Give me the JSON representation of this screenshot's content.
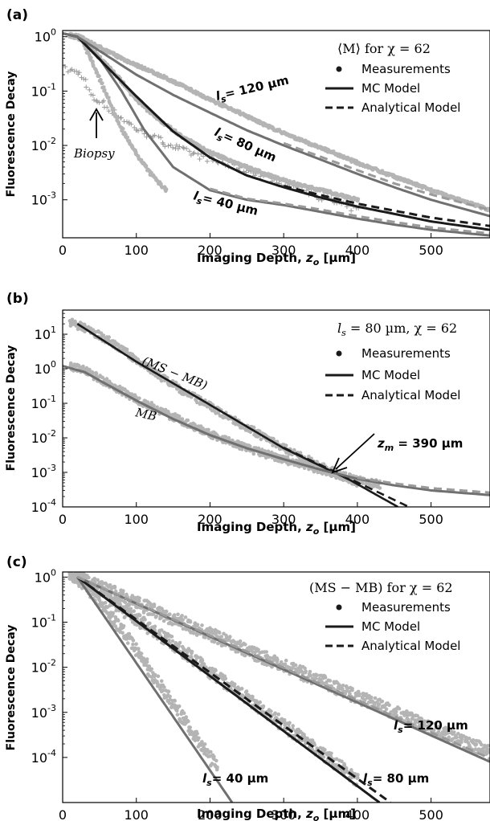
{
  "colors": {
    "meas": "#b4b4b4",
    "biopsy": "#9a9a9a",
    "mc_dark": "#1a1a1a",
    "gray_line": "#707070",
    "gray_dash": "#9a9a9a"
  },
  "chart_data": [
    {
      "panel": "(a)",
      "type": "line",
      "title": "",
      "xlabel": "Imaging Depth, z_o [µm]",
      "ylabel": "Fluorescence Decay",
      "xlim": [
        0,
        580
      ],
      "ylim": [
        0.0002,
        1.3
      ],
      "yscale": "log",
      "xticks": [
        0,
        100,
        200,
        300,
        400,
        500
      ],
      "yticks": [
        "10^0",
        "10^-1",
        "10^-2",
        "10^-3"
      ],
      "legend": {
        "title": "⟨M⟩ for χ = 62",
        "placement": "top-right",
        "entries": [
          "Measurements",
          "MC Model",
          "Analytical Model"
        ]
      },
      "annotations": [
        "l_s = 120 µm",
        "l_s = 80 µm",
        "l_s = 40 µm",
        "Biopsy"
      ],
      "series": [
        {
          "ls": 40,
          "model": "MC",
          "x": [
            0,
            20,
            50,
            80,
            110,
            150,
            200,
            250,
            300,
            350,
            400,
            450,
            500,
            580
          ],
          "y": [
            1.15,
            1.0,
            0.4,
            0.1,
            0.02,
            0.004,
            0.0015,
            0.001,
            0.0008,
            0.0006,
            0.00045,
            0.00035,
            0.00028,
            0.00022
          ]
        },
        {
          "ls": 40,
          "model": "Analytical",
          "x": [
            200,
            250,
            300,
            350,
            400,
            450,
            500,
            580
          ],
          "y": [
            0.0016,
            0.00105,
            0.00085,
            0.00066,
            0.0005,
            0.00039,
            0.00031,
            0.00024
          ]
        },
        {
          "ls": 80,
          "model": "MC",
          "x": [
            0,
            20,
            60,
            100,
            150,
            200,
            250,
            300,
            350,
            400,
            450,
            500,
            580
          ],
          "y": [
            1.15,
            1.0,
            0.28,
            0.08,
            0.018,
            0.006,
            0.0028,
            0.0017,
            0.0011,
            0.00075,
            0.00055,
            0.0004,
            0.00028
          ]
        },
        {
          "ls": 80,
          "model": "Analytical",
          "x": [
            300,
            350,
            400,
            450,
            500,
            580
          ],
          "y": [
            0.0018,
            0.00122,
            0.00085,
            0.00063,
            0.00047,
            0.00033
          ]
        },
        {
          "ls": 120,
          "model": "MC",
          "x": [
            0,
            20,
            60,
            100,
            150,
            200,
            250,
            300,
            350,
            400,
            450,
            500,
            580
          ],
          "y": [
            1.15,
            1.0,
            0.45,
            0.2,
            0.085,
            0.04,
            0.019,
            0.01,
            0.0055,
            0.003,
            0.0017,
            0.001,
            0.0005
          ]
        },
        {
          "ls": 120,
          "model": "Analytical",
          "x": [
            300,
            350,
            400,
            450,
            500,
            580
          ],
          "y": [
            0.011,
            0.0062,
            0.0035,
            0.002,
            0.00125,
            0.00065
          ]
        }
      ],
      "measurements": [
        {
          "ls": 120,
          "x": [
            10,
            25,
            40,
            60,
            80,
            100,
            130,
            160,
            200,
            240,
            280,
            320,
            360,
            400,
            440,
            480,
            520,
            560,
            580
          ],
          "y": [
            1.1,
            1.0,
            0.75,
            0.55,
            0.4,
            0.3,
            0.2,
            0.13,
            0.07,
            0.04,
            0.022,
            0.013,
            0.008,
            0.0048,
            0.003,
            0.0019,
            0.0012,
            0.0008,
            0.00065
          ]
        },
        {
          "ls": 80,
          "x": [
            10,
            25,
            40,
            60,
            80,
            100,
            130,
            160,
            200,
            240,
            280,
            320,
            360,
            400
          ],
          "y": [
            1.05,
            0.95,
            0.6,
            0.3,
            0.15,
            0.07,
            0.03,
            0.015,
            0.0075,
            0.0045,
            0.0028,
            0.0019,
            0.0014,
            0.001
          ]
        },
        {
          "ls": 40,
          "x": [
            10,
            25,
            40,
            55,
            70,
            85,
            100,
            120,
            140
          ],
          "y": [
            1.05,
            0.9,
            0.35,
            0.12,
            0.04,
            0.015,
            0.007,
            0.003,
            0.0015
          ]
        }
      ],
      "biopsy": {
        "x": [
          5,
          10,
          15,
          20,
          25,
          30,
          35,
          40,
          45,
          50,
          55,
          60,
          70,
          80,
          90,
          100,
          120,
          140,
          160,
          180,
          200,
          220,
          240,
          260,
          280,
          300,
          320,
          340,
          360,
          380,
          400
        ],
        "y": [
          0.25,
          0.24,
          0.23,
          0.22,
          0.2,
          0.15,
          0.1,
          0.075,
          0.07,
          0.065,
          0.06,
          0.05,
          0.04,
          0.032,
          0.025,
          0.02,
          0.015,
          0.011,
          0.0085,
          0.0068,
          0.0055,
          0.0045,
          0.0038,
          0.0032,
          0.0026,
          0.0021,
          0.0017,
          0.0013,
          0.001,
          0.0008,
          0.00065
        ]
      }
    },
    {
      "panel": "(b)",
      "type": "line",
      "title": "",
      "xlabel": "Imaging Depth, z_o [µm]",
      "ylabel": "Fluorescence Decay",
      "xlim": [
        0,
        580
      ],
      "ylim": [
        0.0001,
        50
      ],
      "yscale": "log",
      "xticks": [
        0,
        100,
        200,
        300,
        400,
        500
      ],
      "yticks": [
        "10^1",
        "10^0",
        "10^-1",
        "10^-2",
        "10^-3",
        "10^-4"
      ],
      "legend": {
        "title": "l_s = 80 µm, χ = 62",
        "placement": "top-right",
        "entries": [
          "Measurements",
          "MC Model",
          "Analytical Model"
        ]
      },
      "annotations": [
        "(MS − MB)",
        "MB",
        "z_m = 390 µm"
      ],
      "series": [
        {
          "name": "(MS − MB)",
          "model": "MC",
          "x": [
            20,
            100,
            200,
            300,
            390,
            455
          ],
          "y": [
            20,
            1.6,
            0.09,
            0.005,
            0.0006,
            0.0001
          ]
        },
        {
          "name": "(MS − MB)",
          "model": "Analytical",
          "x": [
            300,
            390,
            470
          ],
          "y": [
            0.0052,
            0.00065,
            0.0001
          ]
        },
        {
          "name": "MB",
          "model": "MC",
          "x": [
            0,
            30,
            60,
            100,
            150,
            200,
            250,
            300,
            350,
            400,
            450,
            500,
            580
          ],
          "y": [
            1.2,
            0.8,
            0.35,
            0.12,
            0.035,
            0.012,
            0.005,
            0.0024,
            0.0012,
            0.00065,
            0.00042,
            0.0003,
            0.00022
          ]
        },
        {
          "name": "MB",
          "model": "Analytical",
          "x": [
            400,
            450,
            500,
            580
          ],
          "y": [
            0.0007,
            0.00048,
            0.00035,
            0.00026
          ]
        }
      ],
      "measurements": [
        {
          "name": "(MS − MB)",
          "x": [
            10,
            30,
            60,
            100,
            150,
            200,
            250,
            300,
            350,
            400
          ],
          "y": [
            22,
            15,
            7,
            1.8,
            0.35,
            0.08,
            0.02,
            0.005,
            0.0015,
            0.0005
          ]
        },
        {
          "name": "MB",
          "x": [
            10,
            30,
            60,
            100,
            150,
            200,
            250,
            300,
            350,
            400,
            430
          ],
          "y": [
            1.2,
            0.9,
            0.4,
            0.13,
            0.04,
            0.013,
            0.005,
            0.0023,
            0.0012,
            0.0006,
            0.00045
          ]
        }
      ],
      "marker": {
        "label": "z_m = 390 µm",
        "x": 390,
        "y": 0.0006
      }
    },
    {
      "panel": "(c)",
      "type": "line",
      "title": "",
      "xlabel": "Imaging Depth, z_o [µm]",
      "ylabel": "Fluorescence Decay",
      "xlim": [
        0,
        580
      ],
      "ylim": [
        1e-05,
        1.3
      ],
      "yscale": "log",
      "xticks": [
        0,
        100,
        200,
        300,
        400,
        500
      ],
      "yticks": [
        "10^0",
        "10^-1",
        "10^-2",
        "10^-3",
        "10^-4"
      ],
      "legend": {
        "title": "(MS − MB) for χ = 62",
        "placement": "top-right",
        "entries": [
          "Measurements",
          "MC Model",
          "Analytical Model"
        ]
      },
      "annotations": [
        "l_s = 40 µm",
        "l_s = 80 µm",
        "l_s = 120 µm"
      ],
      "series": [
        {
          "ls": 40,
          "model": "MC",
          "x": [
            20,
            230
          ],
          "y": [
            1.0,
            1e-05
          ]
        },
        {
          "ls": 80,
          "model": "MC",
          "x": [
            20,
            430
          ],
          "y": [
            1.0,
            1e-05
          ]
        },
        {
          "ls": 80,
          "model": "Analytical",
          "x": [
            20,
            445
          ],
          "y": [
            1.0,
            1e-05
          ]
        },
        {
          "ls": 120,
          "model": "MC",
          "x": [
            20,
            580
          ],
          "y": [
            1.0,
            8e-05
          ]
        },
        {
          "ls": 120,
          "model": "Analytical",
          "x": [
            20,
            580
          ],
          "y": [
            1.0,
            9.5e-05
          ]
        }
      ],
      "measurements": [
        {
          "ls": 40,
          "x": [
            10,
            30,
            60,
            90,
            120,
            150,
            180,
            210
          ],
          "y": [
            1.2,
            0.7,
            0.18,
            0.04,
            0.008,
            0.0015,
            0.0003,
            6e-05
          ]
        },
        {
          "ls": 80,
          "x": [
            10,
            40,
            80,
            120,
            160,
            200,
            240,
            280,
            320,
            360,
            400
          ],
          "y": [
            1.2,
            0.6,
            0.2,
            0.07,
            0.025,
            0.008,
            0.0028,
            0.0009,
            0.0003,
            0.0001,
            3e-05
          ]
        },
        {
          "ls": 120,
          "x": [
            10,
            50,
            100,
            150,
            200,
            250,
            300,
            350,
            400,
            450,
            500,
            550,
            580
          ],
          "y": [
            1.2,
            0.6,
            0.27,
            0.12,
            0.055,
            0.024,
            0.011,
            0.005,
            0.0022,
            0.001,
            0.00045,
            0.0002,
            0.00013
          ]
        }
      ]
    }
  ],
  "text": {
    "a_label": "(a)",
    "b_label": "(b)",
    "c_label": "(c)",
    "ylabel": "Fluorescence Decay",
    "xlabel_main": "Imaging Depth, ",
    "xlabel_var": "z",
    "xlabel_sub": "o",
    "xlabel_unit": " [µm]",
    "xticks": [
      "0",
      "100",
      "200",
      "300",
      "400",
      "500"
    ],
    "ytick_base": "10",
    "a_yexp": [
      "0",
      "-1",
      "-2",
      "-3"
    ],
    "b_yexp": [
      "1",
      "0",
      "-1",
      "-2",
      "-3",
      "-4"
    ],
    "c_yexp": [
      "0",
      "-1",
      "-2",
      "-3",
      "-4"
    ],
    "legend_meas": "Measurements",
    "legend_mc": "MC Model",
    "legend_an": "Analytical Model",
    "a_legend_title": "⟨M⟩ for χ = 62",
    "b_legend_title": "ls = 80 µm, χ = 62",
    "c_legend_title": "(MS − MB) for χ = 62",
    "l": "l",
    "s": "s",
    "a_ls120": "= 120 µm",
    "a_ls80": "= 80 µm",
    "a_ls40": "= 40 µm",
    "biopsy": "Biopsy",
    "b_msmb": "(MS − MB)",
    "b_mb": "MB",
    "b_zm_z": "z",
    "b_zm_m": "m",
    "b_zm_val": " = 390 µm",
    "c_ls40": "= 40 µm",
    "c_ls80": "= 80 µm",
    "c_ls120": "= 120 µm"
  }
}
